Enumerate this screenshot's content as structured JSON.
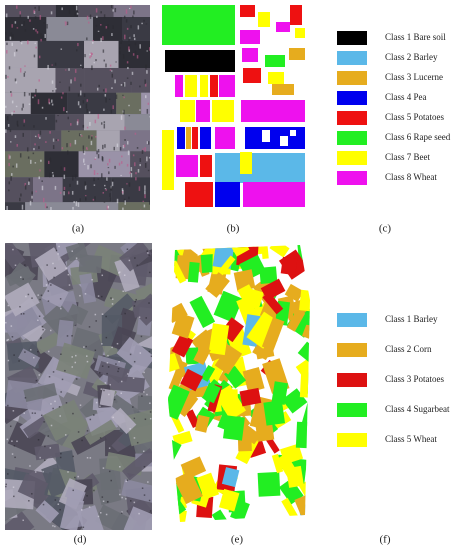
{
  "panels": [
    "(a)",
    "(b)",
    "(c)",
    "(d)",
    "(e)",
    "(f)"
  ],
  "legend_top": [
    {
      "label": "Class 1 Bare soil",
      "color": "#000000"
    },
    {
      "label": "Class 2 Barley",
      "color": "#5bb8e8"
    },
    {
      "label": "Class 3 Lucerne",
      "color": "#e6ac1e"
    },
    {
      "label": "Class 4 Pea",
      "color": "#0000ee"
    },
    {
      "label": "Class 5 Potatoes",
      "color": "#ee1111"
    },
    {
      "label": "Class 6 Rape seed",
      "color": "#22ee22"
    },
    {
      "label": "Class 7 Beet",
      "color": "#ffff00"
    },
    {
      "label": "Class 8 Wheat",
      "color": "#ee11ee"
    }
  ],
  "legend_bottom": [
    {
      "label": "Class 1 Barley",
      "color": "#5bb8e8"
    },
    {
      "label": "Class 2 Corn",
      "color": "#e6ac1e"
    },
    {
      "label": "Class 3 Potatoes",
      "color": "#dd1111"
    },
    {
      "label": "Class 4 Sugarbeat",
      "color": "#22ee22"
    },
    {
      "label": "Class 5 Wheat",
      "color": "#ffff00"
    }
  ]
}
